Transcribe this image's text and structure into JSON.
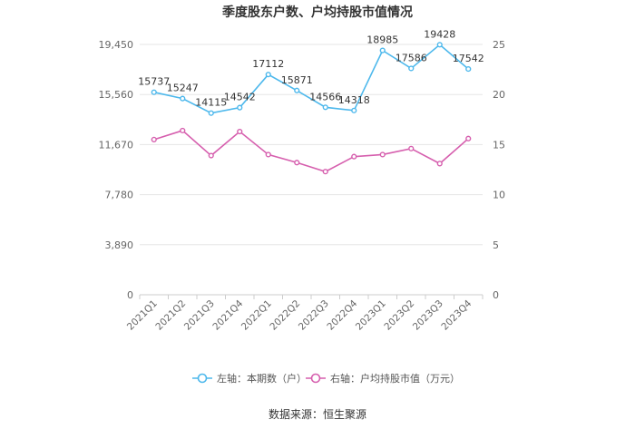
{
  "chart_data": {
    "type": "line",
    "title": "季度股东户数、户均持股市值情况",
    "categories": [
      "2021Q1",
      "2021Q2",
      "2021Q3",
      "2021Q4",
      "2022Q1",
      "2022Q2",
      "2022Q3",
      "2022Q4",
      "2023Q1",
      "2023Q2",
      "2023Q3",
      "2023Q4"
    ],
    "left_axis": {
      "ticks": [
        "0",
        "3,890",
        "7,780",
        "11,670",
        "15,560",
        "19,450"
      ],
      "ylim": [
        0,
        19450
      ]
    },
    "right_axis": {
      "ticks": [
        "0",
        "5",
        "10",
        "15",
        "20",
        "25"
      ],
      "ylim": [
        0,
        25
      ]
    },
    "series": [
      {
        "name": "左轴：本期数（户）",
        "axis": "left",
        "color": "#4db8ec",
        "values": [
          15737,
          15247,
          14115,
          14542,
          17112,
          15871,
          14566,
          14318,
          18985,
          17586,
          19428,
          17542
        ],
        "labels": [
          "15737",
          "15247",
          "14115",
          "14542",
          "17112",
          "15871",
          "14566",
          "14318",
          "18985",
          "17586",
          "19428",
          "17542"
        ]
      },
      {
        "name": "右轴：户均持股市值（万元）",
        "axis": "right",
        "color": "#d65fae",
        "values": [
          15.5,
          16.4,
          13.9,
          16.3,
          14.0,
          13.2,
          12.3,
          13.8,
          14.0,
          14.6,
          13.1,
          15.6
        ]
      }
    ],
    "grid": true,
    "legend_position": "bottom-center"
  },
  "footer": {
    "source": "数据来源：恒生聚源"
  }
}
